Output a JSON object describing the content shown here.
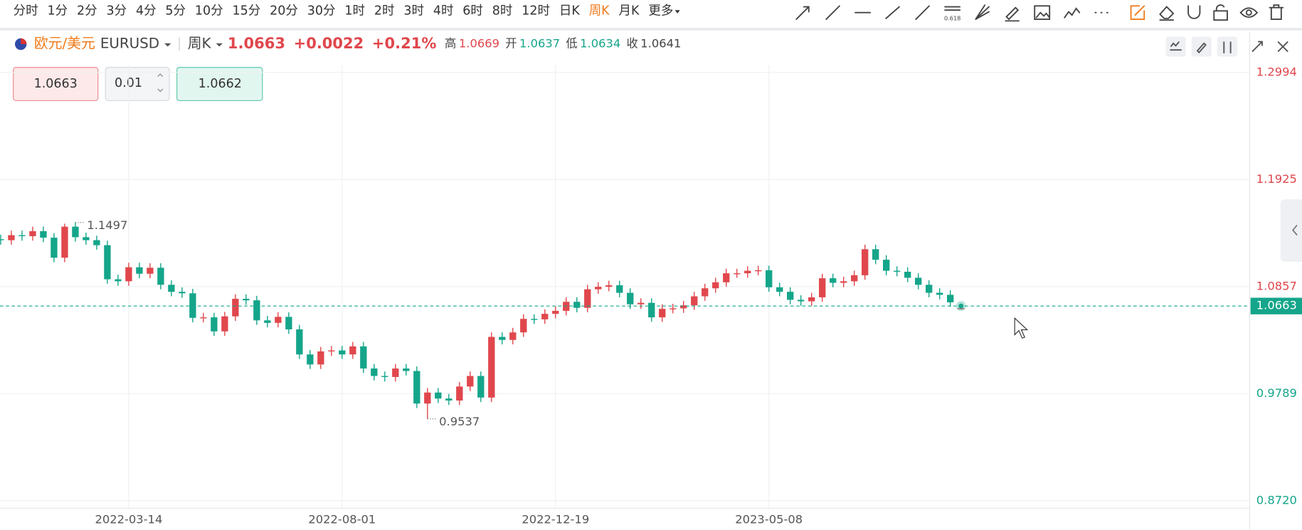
{
  "toolbar": {
    "timeframes": [
      "分时",
      "1分",
      "2分",
      "3分",
      "4分",
      "5分",
      "10分",
      "15分",
      "20分",
      "30分",
      "1时",
      "2时",
      "3时",
      "4时",
      "6时",
      "8时",
      "12时",
      "日K",
      "周K",
      "月K",
      "更多"
    ],
    "active": 18,
    "fib_label": "0.618"
  },
  "header": {
    "symbol_name": "欧元/美元",
    "symbol": "EURUSD",
    "change": "+0.0022",
    "change_pct": "+0.21%",
    "high_label": "高",
    "open_label": "开",
    "low_label": "低",
    "close_label": "收"
  },
  "order_panel": {
    "sell": "1.0663",
    "quantity": "0.01",
    "buy": "1.0662"
  },
  "chart_data": {
    "type": "candlestick",
    "up_color": "#e0474c",
    "down_color": "#14a58a",
    "grid": true,
    "current_price": 1.0663,
    "ylim": [
      0.8645,
      1.3069
    ],
    "yticks": [
      1.2994,
      1.1925,
      1.0857,
      0.9789,
      {
        "value": 0.872,
        "label": "0.8720"
      }
    ],
    "categories": [
      null,
      null,
      null,
      null,
      null,
      null,
      null,
      null,
      null,
      null,
      null,
      null,
      "2022-03-14",
      null,
      null,
      null,
      null,
      null,
      null,
      null,
      null,
      null,
      null,
      null,
      null,
      null,
      null,
      null,
      null,
      null,
      null,
      null,
      "2022-08-01",
      null,
      null,
      null,
      null,
      null,
      null,
      null,
      null,
      null,
      null,
      null,
      null,
      null,
      null,
      null,
      null,
      null,
      null,
      null,
      "2022-12-19",
      null,
      null,
      null,
      null,
      null,
      null,
      null,
      null,
      null,
      null,
      null,
      null,
      null,
      null,
      null,
      null,
      null,
      null,
      null,
      "2023-05-08",
      null,
      null,
      null,
      null,
      null,
      null,
      null,
      null,
      null,
      null,
      null,
      null,
      null,
      null,
      null,
      null,
      null,
      null
    ],
    "open": [
      1.133,
      1.132,
      1.137,
      1.136,
      1.141,
      1.1345,
      1.1145,
      1.1455,
      1.135,
      1.132,
      1.127,
      1.093,
      1.091,
      1.105,
      1.0985,
      1.1045,
      1.0875,
      1.0805,
      1.079,
      1.0545,
      1.055,
      1.041,
      1.056,
      1.0735,
      1.072,
      1.052,
      1.0495,
      1.0555,
      1.043,
      1.018,
      1.008,
      1.021,
      1.022,
      1.018,
      1.026,
      1.004,
      0.9965,
      0.9955,
      1.004,
      1.0015,
      0.969,
      0.98,
      0.974,
      0.972,
      0.986,
      0.9965,
      0.975,
      1.0355,
      1.0325,
      1.04,
      1.0535,
      1.053,
      1.0585,
      1.0615,
      1.0705,
      1.0645,
      1.083,
      1.0855,
      1.087,
      1.0795,
      1.068,
      1.0695,
      1.055,
      1.0635,
      1.064,
      1.067,
      1.076,
      1.084,
      1.09,
      1.099,
      1.099,
      1.1015,
      1.102,
      1.085,
      1.0805,
      1.0725,
      1.071,
      1.075,
      1.094,
      1.0895,
      1.091,
      1.097,
      1.123,
      1.1125,
      1.1015,
      1.1005,
      1.0945,
      1.0875,
      1.0795,
      1.0775,
      1.0637
    ],
    "high": [
      1.1375,
      1.1415,
      1.1415,
      1.1455,
      1.1455,
      1.139,
      1.1485,
      1.1497,
      1.1395,
      1.1365,
      1.1315,
      1.0975,
      1.1095,
      1.1095,
      1.109,
      1.109,
      1.092,
      1.085,
      1.0835,
      1.0595,
      1.0595,
      1.0605,
      1.078,
      1.078,
      1.0765,
      1.0565,
      1.06,
      1.06,
      1.0475,
      1.0225,
      1.0255,
      1.0265,
      1.0265,
      1.0305,
      1.0305,
      1.0085,
      1.001,
      1.0085,
      1.0085,
      1.006,
      0.9845,
      0.9845,
      0.9785,
      0.9905,
      1.001,
      1.001,
      1.04,
      1.04,
      1.0445,
      1.058,
      1.058,
      1.063,
      1.066,
      1.075,
      1.075,
      1.0875,
      1.09,
      1.0915,
      1.0915,
      1.084,
      1.074,
      1.074,
      1.068,
      1.0685,
      1.0715,
      1.0805,
      1.0885,
      1.0945,
      1.1035,
      1.1035,
      1.106,
      1.1065,
      1.1065,
      1.0895,
      1.085,
      1.077,
      1.0795,
      1.0985,
      1.0985,
      1.0955,
      1.1015,
      1.1275,
      1.1275,
      1.117,
      1.106,
      1.105,
      1.099,
      1.092,
      1.084,
      1.082,
      1.0669
    ],
    "low": [
      1.1275,
      1.1275,
      1.1315,
      1.1315,
      1.13,
      1.11,
      1.11,
      1.1305,
      1.1275,
      1.1225,
      1.0885,
      1.0865,
      1.0865,
      1.094,
      1.094,
      1.083,
      1.076,
      1.0745,
      1.05,
      1.05,
      1.0365,
      1.0365,
      1.0515,
      1.0675,
      1.0475,
      1.045,
      1.045,
      1.0385,
      1.0135,
      1.0035,
      1.0035,
      1.0165,
      1.0135,
      1.0135,
      0.9995,
      0.992,
      0.991,
      0.991,
      0.997,
      0.9645,
      0.9537,
      0.9695,
      0.9675,
      0.9675,
      0.9815,
      0.9705,
      0.9705,
      1.028,
      1.028,
      1.0355,
      1.0485,
      1.0485,
      1.054,
      1.057,
      1.06,
      1.06,
      1.0785,
      1.081,
      1.075,
      1.0635,
      1.0635,
      1.0505,
      1.0505,
      1.059,
      1.0595,
      1.0625,
      1.0715,
      1.0795,
      1.0855,
      1.0945,
      1.0945,
      1.097,
      1.0805,
      1.076,
      1.068,
      1.0665,
      1.0665,
      1.0705,
      1.085,
      1.085,
      1.0865,
      1.0925,
      1.108,
      1.097,
      1.096,
      1.09,
      1.083,
      1.075,
      1.073,
      1.0655,
      1.0634
    ],
    "close": [
      1.132,
      1.137,
      1.136,
      1.141,
      1.1345,
      1.1145,
      1.1455,
      1.135,
      1.132,
      1.127,
      1.093,
      1.091,
      1.105,
      1.0985,
      1.1045,
      1.0875,
      1.0805,
      1.079,
      1.0545,
      1.055,
      1.041,
      1.056,
      1.0735,
      1.072,
      1.052,
      1.0495,
      1.0555,
      1.043,
      1.018,
      1.008,
      1.021,
      1.022,
      1.018,
      1.026,
      1.004,
      0.9965,
      0.9955,
      1.004,
      1.0015,
      0.969,
      0.98,
      0.974,
      0.972,
      0.986,
      0.9965,
      0.975,
      1.0355,
      1.0325,
      1.04,
      1.0535,
      1.053,
      1.0585,
      1.0615,
      1.0705,
      1.0645,
      1.083,
      1.0855,
      1.087,
      1.0795,
      1.068,
      1.0695,
      1.055,
      1.0635,
      1.064,
      1.067,
      1.076,
      1.084,
      1.09,
      1.099,
      1.099,
      1.1015,
      1.102,
      1.085,
      1.0805,
      1.0725,
      1.071,
      1.075,
      1.094,
      1.0895,
      1.091,
      1.097,
      1.123,
      1.1125,
      1.1015,
      1.1005,
      1.0945,
      1.0875,
      1.0795,
      1.0775,
      1.07,
      1.0641
    ]
  }
}
